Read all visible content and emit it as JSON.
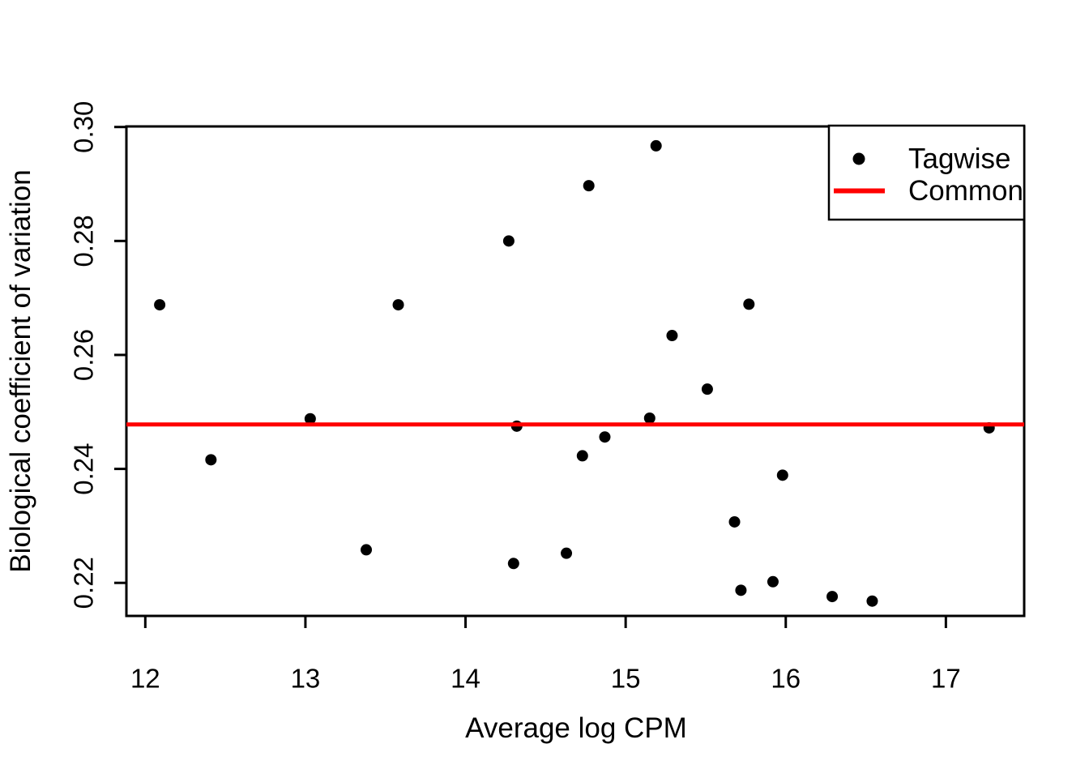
{
  "figure": {
    "background": "#ffffff",
    "axis_color": "#000000",
    "text_color": "#000000"
  },
  "chart_data": {
    "type": "scatter",
    "title": "",
    "xlabel": "Average log CPM",
    "ylabel": "Biological coefficient of variation",
    "x_ticks": [
      12,
      13,
      14,
      15,
      16,
      17
    ],
    "y_ticks": [
      0.22,
      0.24,
      0.26,
      0.28,
      0.3
    ],
    "xlim": [
      11.882,
      17.489
    ],
    "ylim": [
      0.2142,
      0.3001
    ],
    "grid": false,
    "legend": {
      "position": "topright",
      "entries": [
        {
          "label": "Tagwise",
          "symbol": "filled-circle",
          "color": "#000000"
        },
        {
          "label": "Common",
          "symbol": "line",
          "color": "#FF0000"
        }
      ]
    },
    "series": [
      {
        "name": "Tagwise",
        "type": "points",
        "marker": "filled-circle",
        "color": "#000000",
        "points": [
          [
            12.09,
            0.2688
          ],
          [
            12.41,
            0.2416
          ],
          [
            13.03,
            0.2488
          ],
          [
            13.38,
            0.2258
          ],
          [
            13.58,
            0.2688
          ],
          [
            14.27,
            0.28
          ],
          [
            14.3,
            0.2234
          ],
          [
            14.32,
            0.2475
          ],
          [
            14.63,
            0.2252
          ],
          [
            14.73,
            0.2423
          ],
          [
            14.77,
            0.2897
          ],
          [
            14.87,
            0.2456
          ],
          [
            15.15,
            0.2489
          ],
          [
            15.19,
            0.2967
          ],
          [
            15.29,
            0.2634
          ],
          [
            15.51,
            0.254
          ],
          [
            15.68,
            0.2307
          ],
          [
            15.72,
            0.2187
          ],
          [
            15.77,
            0.2689
          ],
          [
            15.92,
            0.2202
          ],
          [
            15.98,
            0.2389
          ],
          [
            16.29,
            0.2176
          ],
          [
            16.54,
            0.2168
          ],
          [
            17.27,
            0.2472
          ]
        ]
      },
      {
        "name": "Common",
        "type": "hline",
        "color": "#FF0000",
        "y": 0.2478
      }
    ]
  }
}
